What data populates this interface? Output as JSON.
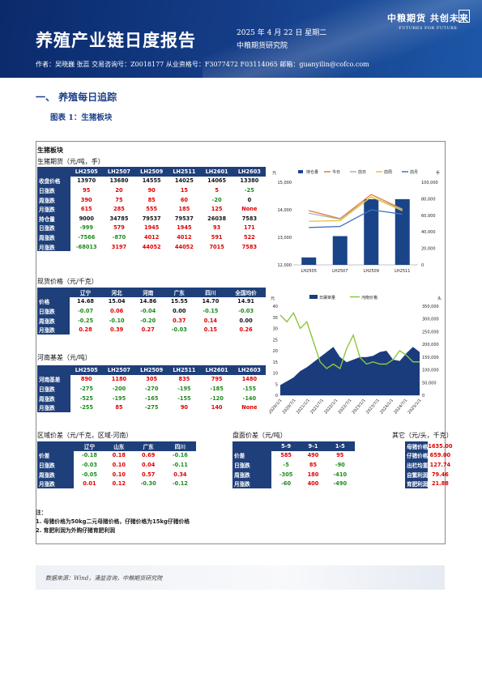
{
  "header": {
    "title": "养殖产业链日度报告",
    "date": "2025 年 4 月 22 日 星期二",
    "org": "中粮期货研究院",
    "logo_cn": "中粮期货 共创未来",
    "logo_en": "·FUTURES FOR FUTURE·",
    "authors": "作者：吴晓巍 张蕊 交易咨询号：Z0018177 从业资格号：F3077472 F03114065 邮箱：guanyilin@cofco.com"
  },
  "section_title": "一、   养殖每日追踪",
  "figure_title": "图表 1：生猪板块",
  "panel_title": "生猪板块",
  "futures": {
    "label": "生猪期货（元/吨，手）",
    "cols": [
      "LH2505",
      "LH2507",
      "LH2509",
      "LH2511",
      "LH2601",
      "LH2603"
    ],
    "rows": [
      {
        "name": "收盘价格",
        "values": [
          "13970",
          "13680",
          "14555",
          "14025",
          "14065",
          "13380"
        ],
        "colors": [
          "blk",
          "blk",
          "blk",
          "blk",
          "blk",
          "blk"
        ]
      },
      {
        "name": "日涨跌",
        "values": [
          "95",
          "20",
          "90",
          "15",
          "5",
          "-25"
        ],
        "colors": [
          "red",
          "red",
          "red",
          "red",
          "red",
          "grn"
        ]
      },
      {
        "name": "周涨跌",
        "values": [
          "390",
          "75",
          "85",
          "60",
          "-20",
          "0"
        ],
        "colors": [
          "red",
          "red",
          "red",
          "red",
          "grn",
          "blk"
        ]
      },
      {
        "name": "月涨跌",
        "values": [
          "615",
          "285",
          "555",
          "185",
          "125",
          "None"
        ],
        "colors": [
          "red",
          "red",
          "red",
          "red",
          "red",
          "red"
        ]
      },
      {
        "name": "持仓量",
        "values": [
          "9000",
          "34785",
          "79537",
          "79537",
          "26038",
          "7583"
        ],
        "colors": [
          "blk",
          "blk",
          "blk",
          "blk",
          "blk",
          "blk"
        ]
      },
      {
        "name": "日涨跌",
        "values": [
          "-999",
          "579",
          "1945",
          "1945",
          "93",
          "171"
        ],
        "colors": [
          "grn",
          "red",
          "red",
          "red",
          "red",
          "red"
        ]
      },
      {
        "name": "周涨跌",
        "values": [
          "-7566",
          "-870",
          "4012",
          "4012",
          "591",
          "522"
        ],
        "colors": [
          "grn",
          "grn",
          "red",
          "red",
          "red",
          "red"
        ]
      },
      {
        "name": "月涨跌",
        "values": [
          "-68013",
          "3197",
          "44052",
          "44052",
          "7015",
          "7583"
        ],
        "colors": [
          "grn",
          "red",
          "red",
          "red",
          "red",
          "red"
        ]
      }
    ]
  },
  "spot": {
    "label": "现货价格（元/千克）",
    "cols": [
      "辽宁",
      "河北",
      "河南",
      "广东",
      "四川",
      "全国均价"
    ],
    "rows": [
      {
        "name": "价格",
        "values": [
          "14.68",
          "15.04",
          "14.86",
          "15.55",
          "14.70",
          "14.91"
        ],
        "colors": [
          "blk",
          "blk",
          "blk",
          "blk",
          "blk",
          "blk"
        ]
      },
      {
        "name": "日涨跌",
        "values": [
          "-0.07",
          "0.06",
          "-0.04",
          "0.00",
          "-0.15",
          "-0.03"
        ],
        "colors": [
          "grn",
          "red",
          "grn",
          "blk",
          "grn",
          "grn"
        ]
      },
      {
        "name": "周涨跌",
        "values": [
          "-0.25",
          "-0.10",
          "-0.20",
          "0.37",
          "0.14",
          "0.00"
        ],
        "colors": [
          "grn",
          "grn",
          "grn",
          "red",
          "red",
          "blk"
        ]
      },
      {
        "name": "月涨跌",
        "values": [
          "0.28",
          "0.39",
          "0.27",
          "-0.03",
          "0.15",
          "0.26"
        ],
        "colors": [
          "red",
          "red",
          "red",
          "grn",
          "red",
          "red"
        ]
      }
    ]
  },
  "basis": {
    "label": "河南基差（元/吨）",
    "cols": [
      "LH2505",
      "LH2507",
      "LH2509",
      "LH2511",
      "LH2601",
      "LH2603"
    ],
    "rows": [
      {
        "name": "河南基差",
        "values": [
          "890",
          "1180",
          "305",
          "835",
          "795",
          "1480"
        ],
        "colors": [
          "red",
          "red",
          "red",
          "red",
          "red",
          "red"
        ]
      },
      {
        "name": "日涨跌",
        "values": [
          "-275",
          "-200",
          "-270",
          "-195",
          "-185",
          "-155"
        ],
        "colors": [
          "grn",
          "grn",
          "grn",
          "grn",
          "grn",
          "grn"
        ]
      },
      {
        "name": "周涨跌",
        "values": [
          "-525",
          "-195",
          "-165",
          "-155",
          "-120",
          "-140"
        ],
        "colors": [
          "grn",
          "grn",
          "grn",
          "grn",
          "grn",
          "grn"
        ]
      },
      {
        "name": "月涨跌",
        "values": [
          "-255",
          "85",
          "-275",
          "90",
          "140",
          "None"
        ],
        "colors": [
          "grn",
          "red",
          "grn",
          "red",
          "red",
          "red"
        ]
      }
    ]
  },
  "regional": {
    "label": "区域价差（元/千克，区域-河南）",
    "cols": [
      "辽宁",
      "山东",
      "广东",
      "四川"
    ],
    "rows": [
      {
        "name": "价差",
        "values": [
          "-0.18",
          "0.18",
          "0.69",
          "-0.16"
        ],
        "colors": [
          "grn",
          "red",
          "red",
          "grn"
        ]
      },
      {
        "name": "日涨跌",
        "values": [
          "-0.03",
          "0.10",
          "0.04",
          "-0.11"
        ],
        "colors": [
          "grn",
          "red",
          "red",
          "grn"
        ]
      },
      {
        "name": "周涨跌",
        "values": [
          "-0.05",
          "0.10",
          "0.57",
          "0.34"
        ],
        "colors": [
          "grn",
          "red",
          "red",
          "red"
        ]
      },
      {
        "name": "月涨跌",
        "values": [
          "0.01",
          "0.12",
          "-0.30",
          "-0.12"
        ],
        "colors": [
          "red",
          "red",
          "grn",
          "grn"
        ]
      }
    ]
  },
  "spread": {
    "label": "盘面价差（元/吨）",
    "cols": [
      "5-9",
      "9-1",
      "1-5"
    ],
    "rows": [
      {
        "name": "价差",
        "values": [
          "585",
          "490",
          "95"
        ],
        "colors": [
          "red",
          "red",
          "red"
        ]
      },
      {
        "name": "日涨跌",
        "values": [
          "-5",
          "85",
          "-90"
        ],
        "colors": [
          "grn",
          "red",
          "grn"
        ]
      },
      {
        "name": "周涨跌",
        "values": [
          "-305",
          "180",
          "-410"
        ],
        "colors": [
          "grn",
          "red",
          "grn"
        ]
      },
      {
        "name": "月涨跌",
        "values": [
          "-60",
          "400",
          "-490"
        ],
        "colors": [
          "grn",
          "red",
          "grn"
        ]
      }
    ]
  },
  "other": {
    "label": "其它（元/头，千克）",
    "rows": [
      {
        "name": "母猪价格",
        "value": "1635.00"
      },
      {
        "name": "仔猪价格",
        "value": "659.00"
      },
      {
        "name": "出栏均重",
        "value": "127.74"
      },
      {
        "name": "自繁利润",
        "value": "79.46"
      },
      {
        "name": "育肥利润",
        "value": "21.88"
      }
    ]
  },
  "notes": {
    "title": "注：",
    "line1": "1. 母猪价格为50kg二元母猪价格，仔猪价格为15kg仔猪价格",
    "line2": "2. 育肥利润为外购仔猪育肥利润"
  },
  "source": "数据来源：Wind，涌益咨询，中粮期货研究院",
  "colors": {
    "navy": "#1e3f7a",
    "bar": "#1a4488",
    "up": "#e00000",
    "down": "#1c8a1c"
  },
  "chart_data": [
    {
      "type": "bar",
      "title": "",
      "left_axis_label": "元",
      "right_axis_label": "手",
      "legend": [
        "持仓量",
        "今日",
        "前日",
        "前周",
        "前月"
      ],
      "legend_colors": [
        "#1a4488",
        "#e07b39",
        "#b0b0b0",
        "#e8c33a",
        "#4472c4"
      ],
      "categories": [
        "LH2505",
        "LH2507",
        "LH2509",
        "LH2511"
      ],
      "bars": {
        "name": "持仓量",
        "values": [
          9000,
          34785,
          79537,
          79537
        ]
      },
      "lines": [
        {
          "name": "今日",
          "values": [
            13970,
            13680,
            14555,
            14025
          ]
        },
        {
          "name": "前日",
          "values": [
            13875,
            13660,
            14465,
            14010
          ]
        },
        {
          "name": "前周",
          "values": [
            13580,
            13605,
            14470,
            13965
          ]
        },
        {
          "name": "前月",
          "values": [
            13355,
            13395,
            14000,
            13840
          ]
        }
      ],
      "ylim_left": [
        12000,
        15000
      ],
      "yticks_left": [
        "12,000",
        "13,000",
        "14,000",
        "15,000"
      ],
      "ylim_right": [
        0,
        100000
      ],
      "yticks_right": [
        "0",
        "20,000",
        "40,000",
        "60,000",
        "80,000",
        "100,000"
      ]
    },
    {
      "type": "area",
      "title": "",
      "left_axis_label": "元",
      "right_axis_label": "头",
      "legend": [
        "日屠宰量",
        "河南价格"
      ],
      "legend_colors": [
        "#1a3c7c",
        "#8cc63f"
      ],
      "x_ticks": [
        "2020/1/1",
        "2020/7/1",
        "2021/1/1",
        "2021/7/1",
        "2022/1/1",
        "2022/7/1",
        "2023/1/1",
        "2023/7/1",
        "2024/1/1",
        "2024/7/1",
        "2025/1/1"
      ],
      "ylim_left": [
        0,
        40
      ],
      "yticks_left": [
        "0",
        "5",
        "10",
        "15",
        "20",
        "25",
        "30",
        "35",
        "40"
      ],
      "ylim_right": [
        0,
        350000
      ],
      "yticks_right": [
        "0",
        "50,000",
        "100,000",
        "150,000",
        "200,000",
        "250,000",
        "300,000",
        "350,000"
      ],
      "series": [
        {
          "name": "河南价格",
          "axis": "left",
          "x": [
            "2020/1",
            "2020/4",
            "2020/7",
            "2020/10",
            "2021/1",
            "2021/4",
            "2021/7",
            "2021/10",
            "2022/1",
            "2022/4",
            "2022/7",
            "2022/10",
            "2023/1",
            "2023/4",
            "2023/7",
            "2023/10",
            "2024/1",
            "2024/4",
            "2024/7",
            "2024/10",
            "2025/1",
            "2025/4"
          ],
          "values": [
            36,
            33,
            37,
            30,
            33,
            24,
            15,
            12,
            14,
            12,
            21,
            27,
            17,
            14,
            15,
            14,
            14,
            16,
            20,
            18,
            15,
            15
          ]
        },
        {
          "name": "日屠宰量",
          "axis": "right",
          "x": [
            "2020/1",
            "2020/4",
            "2020/7",
            "2020/10",
            "2021/1",
            "2021/4",
            "2021/7",
            "2021/10",
            "2022/1",
            "2022/4",
            "2022/7",
            "2022/10",
            "2023/1",
            "2023/4",
            "2023/7",
            "2023/10",
            "2024/1",
            "2024/4",
            "2024/7",
            "2024/10",
            "2025/1",
            "2025/4"
          ],
          "values": [
            40000,
            55000,
            70000,
            95000,
            110000,
            130000,
            150000,
            170000,
            190000,
            150000,
            130000,
            140000,
            150000,
            150000,
            155000,
            170000,
            175000,
            140000,
            135000,
            165000,
            190000,
            170000
          ]
        }
      ]
    }
  ]
}
